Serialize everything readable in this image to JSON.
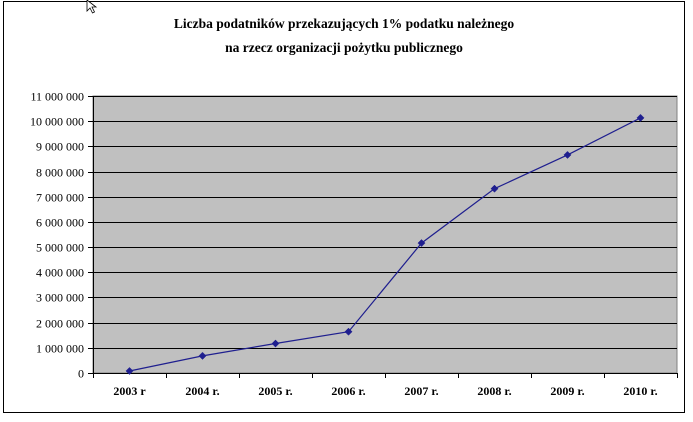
{
  "chart_data": {
    "type": "line",
    "title_lines": [
      "Liczba podatników przekazujących 1% podatku należnego",
      "na rzecz organizacji pożytku publicznego"
    ],
    "categories": [
      "2003 r",
      "2004 r.",
      "2005 r.",
      "2006 r.",
      "2007 r.",
      "2008 r.",
      "2009 r.",
      "2010 r."
    ],
    "series": [
      {
        "values": [
          80000,
          680000,
          1170000,
          1640000,
          5160000,
          7320000,
          8660000,
          10130000
        ],
        "color": "#1f1f8f",
        "marker": "diamond"
      }
    ],
    "ylim": [
      0,
      11000000
    ],
    "y_ticks": [
      0,
      1000000,
      2000000,
      3000000,
      4000000,
      5000000,
      6000000,
      7000000,
      8000000,
      9000000,
      10000000,
      11000000
    ],
    "y_tick_labels": [
      "0",
      "1 000 000",
      "2 000 000",
      "3 000 000",
      "4 000 000",
      "5 000 000",
      "6 000 000",
      "7 000 000",
      "8 000 000",
      "9 000 000",
      "10 000 000",
      "11 000 000"
    ],
    "grid": true,
    "legend": "none",
    "plot_background": "#c0c0c0"
  }
}
